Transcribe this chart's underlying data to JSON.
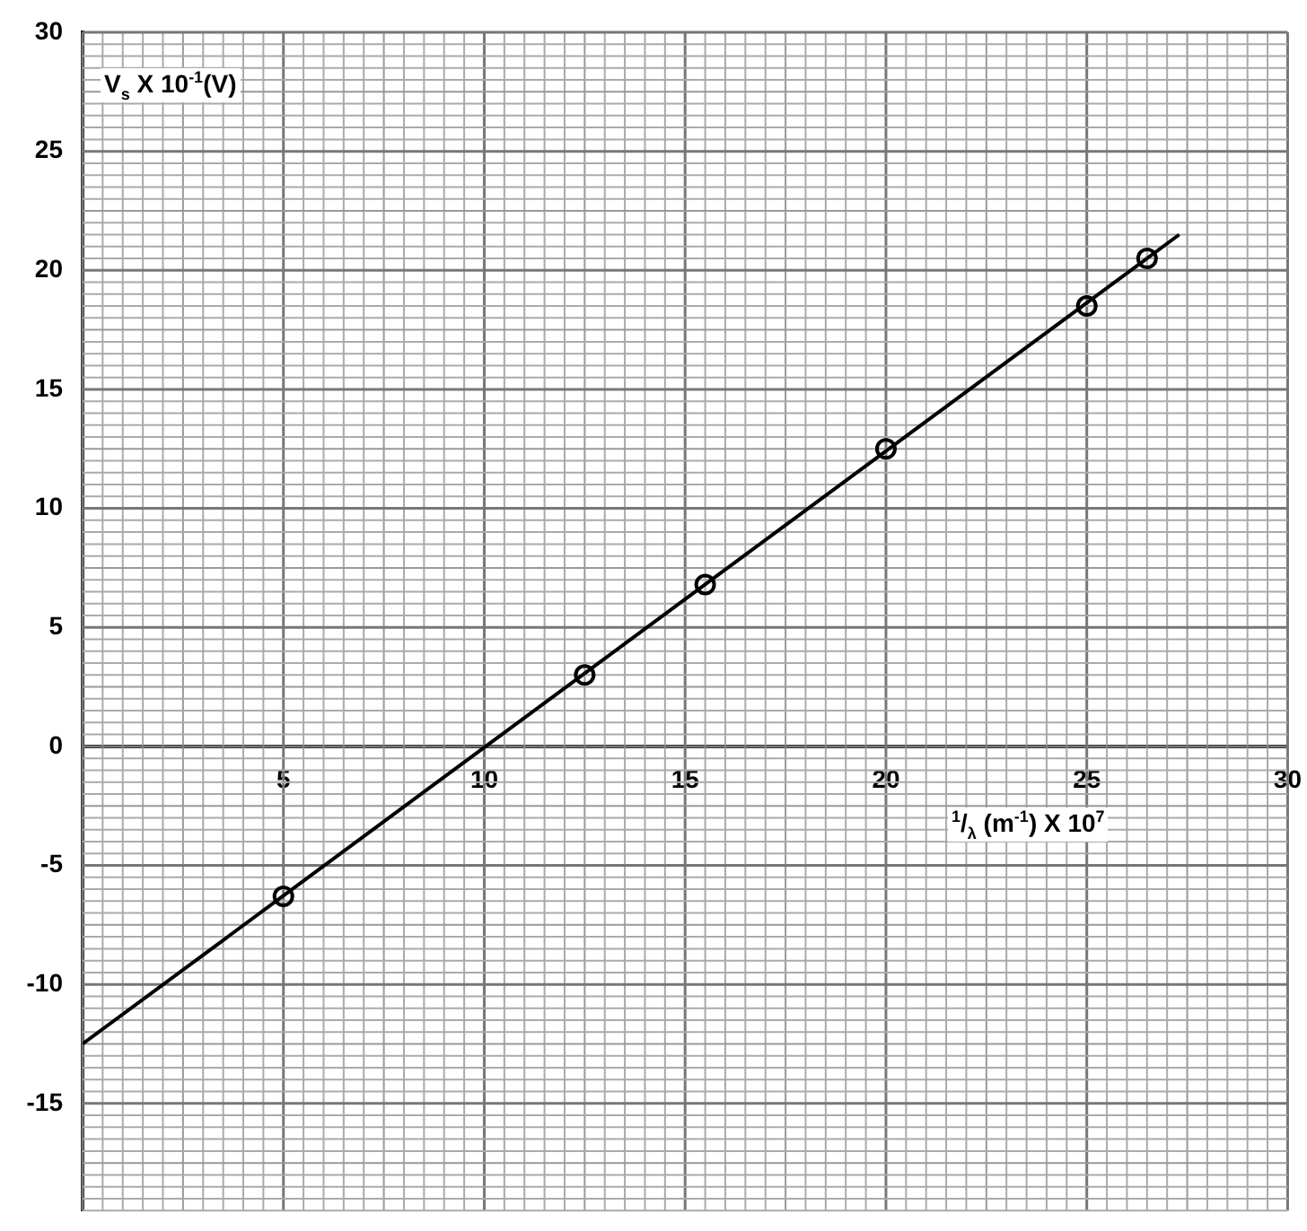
{
  "chart_data": {
    "type": "scatter",
    "xlabel": "$^{1}$/$_{λ}$ (m$^{-1}$) X 10$^{7}$",
    "ylabel": "V$_{s}$ X 10$^{-1}$(V)",
    "xlim": [
      0,
      30
    ],
    "ylim": [
      -19.5,
      30
    ],
    "xticks": [
      5,
      10,
      15,
      20,
      25,
      30
    ],
    "yticks": [
      -15,
      -10,
      -5,
      0,
      5,
      10,
      15,
      20,
      25,
      30
    ],
    "grid": true,
    "marker": "circle",
    "series": [
      {
        "color": "#000000",
        "x": [
          5,
          12.5,
          15.5,
          20,
          25,
          26.5
        ],
        "values": [
          -6.3,
          3,
          6.8,
          12.5,
          18.5,
          20.5
        ]
      },
      {
        "type": "line",
        "color": "#000000",
        "marker": "none",
        "line_style": "solid",
        "x": [
          0,
          27.3
        ],
        "values": [
          -12.5,
          21.5
        ]
      }
    ]
  }
}
